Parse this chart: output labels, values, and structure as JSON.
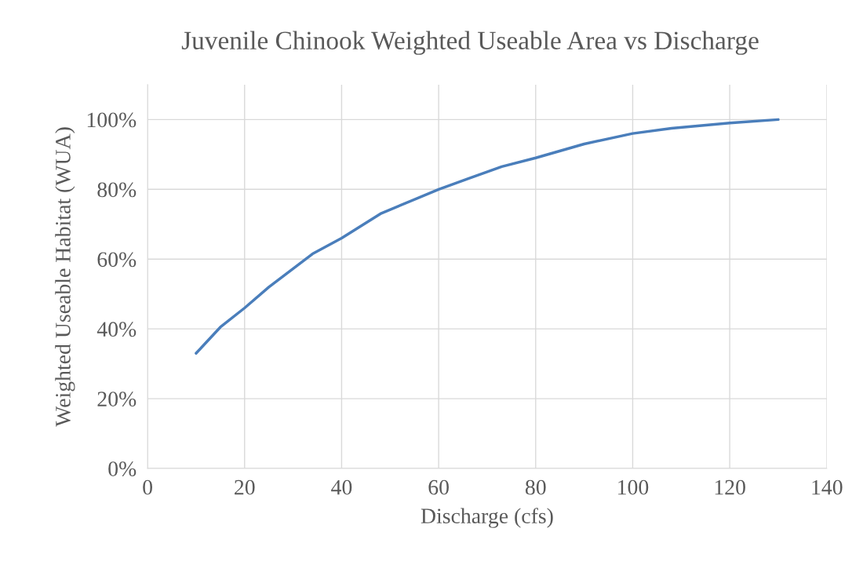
{
  "chart_data": {
    "type": "line",
    "title": "Juvenile Chinook Weighted Useable Area vs Discharge",
    "xlabel": "Discharge (cfs)",
    "ylabel": "Weighted Useable Habitat (WUA)",
    "x": [
      10,
      15,
      20,
      25,
      34,
      40,
      48,
      60,
      66,
      73,
      80,
      90,
      100,
      108,
      120,
      130
    ],
    "series": [
      {
        "color": "#4a7ebb",
        "values": [
          33,
          40.5,
          46,
          52,
          61.5,
          66,
          73,
          80,
          83,
          86.5,
          89,
          93,
          96,
          97.5,
          99,
          100
        ]
      }
    ],
    "xlim": [
      0,
      140
    ],
    "xticks": [
      0,
      20,
      40,
      60,
      80,
      100,
      120,
      140
    ],
    "ylim": [
      0,
      110
    ],
    "yticks": [
      {
        "value": 0,
        "label": "0%"
      },
      {
        "value": 20,
        "label": "20%"
      },
      {
        "value": 40,
        "label": "40%"
      },
      {
        "value": 60,
        "label": "60%"
      },
      {
        "value": 80,
        "label": "80%"
      },
      {
        "value": 100,
        "label": "100%"
      }
    ],
    "grid": true,
    "legend": false,
    "marker": "none",
    "line_style": "solid"
  }
}
